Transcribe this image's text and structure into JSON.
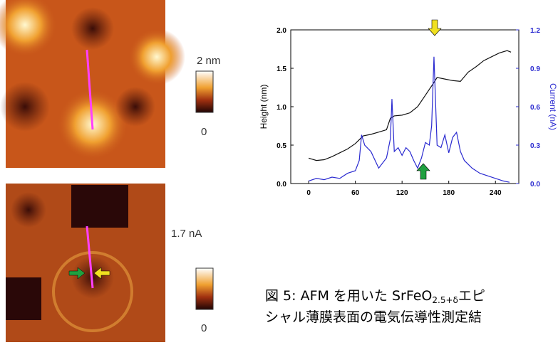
{
  "chart_data": {
    "type": "line",
    "xlim": [
      -23,
      270
    ],
    "xticks": [
      0,
      60,
      120,
      180,
      240
    ],
    "ylim": [
      0,
      2
    ],
    "yticks": [
      {
        "value": 0,
        "label": "0.0"
      },
      0.5,
      {
        "value": 1,
        "label": "1.0"
      },
      1.5,
      {
        "value": 2,
        "label": "2.0"
      }
    ],
    "y2lim": [
      0,
      1.2
    ],
    "y2ticks": [
      {
        "value": 0,
        "label": "0.0"
      },
      0.3,
      0.6,
      0.9,
      1.2
    ],
    "ylabel": "Height (nm)",
    "y2label": "Current (nA)",
    "series": [
      {
        "color": "#111111",
        "x": [
          0,
          10,
          20,
          30,
          40,
          50,
          60,
          70,
          80,
          90,
          100,
          105,
          110,
          120,
          130,
          140,
          150,
          160,
          165,
          175,
          185,
          195,
          205,
          215,
          225,
          235,
          245,
          255,
          260
        ],
        "values": [
          0.33,
          0.3,
          0.31,
          0.35,
          0.4,
          0.45,
          0.52,
          0.62,
          0.64,
          0.67,
          0.7,
          0.85,
          0.88,
          0.89,
          0.92,
          1.0,
          1.15,
          1.3,
          1.38,
          1.36,
          1.34,
          1.33,
          1.45,
          1.52,
          1.6,
          1.65,
          1.7,
          1.73,
          1.71
        ]
      },
      {
        "color": "#2a2ad0",
        "axis": "y2",
        "x": [
          0,
          10,
          20,
          30,
          40,
          50,
          60,
          65,
          68,
          72,
          80,
          90,
          100,
          105,
          107,
          110,
          115,
          120,
          125,
          130,
          135,
          140,
          145,
          150,
          155,
          158,
          161,
          165,
          170,
          175,
          180,
          185,
          190,
          195,
          200,
          210,
          220,
          230,
          240,
          250,
          258
        ],
        "values": [
          0.02,
          0.04,
          0.03,
          0.05,
          0.04,
          0.08,
          0.1,
          0.18,
          0.38,
          0.3,
          0.25,
          0.12,
          0.2,
          0.35,
          0.66,
          0.25,
          0.28,
          0.22,
          0.28,
          0.25,
          0.18,
          0.12,
          0.2,
          0.32,
          0.3,
          0.45,
          0.99,
          0.3,
          0.28,
          0.38,
          0.24,
          0.36,
          0.4,
          0.25,
          0.18,
          0.12,
          0.08,
          0.06,
          0.04,
          0.02,
          0.01
        ]
      }
    ]
  },
  "images": [
    {
      "colorbar_max": "2 nm",
      "colorbar_min": "0"
    },
    {
      "colorbar_max": "1.7 nA",
      "colorbar_min": "0"
    }
  ],
  "caption": {
    "line1": [
      "図 5: AFM を用いた SrFeO",
      "2.5+δ",
      "エピ"
    ],
    "line2": "シャル薄膜表面の電気伝導性測定結"
  }
}
